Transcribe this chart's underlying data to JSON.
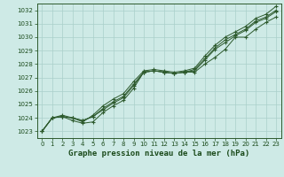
{
  "title": "Graphe pression niveau de la mer (hPa)",
  "background_color": "#ceeae6",
  "grid_color": "#aacfca",
  "line_color": "#2d5a2d",
  "text_color": "#1a4a1a",
  "ylim": [
    1022.5,
    1032.5
  ],
  "xlim": [
    -0.5,
    23.5
  ],
  "yticks": [
    1023,
    1024,
    1025,
    1026,
    1027,
    1028,
    1029,
    1030,
    1031,
    1032
  ],
  "xticks": [
    0,
    1,
    2,
    3,
    4,
    5,
    6,
    7,
    8,
    9,
    10,
    11,
    12,
    13,
    14,
    15,
    16,
    17,
    18,
    19,
    20,
    21,
    22,
    23
  ],
  "series": [
    [
      1023.0,
      1024.0,
      1024.1,
      1023.8,
      1023.6,
      1023.7,
      1024.4,
      1024.9,
      1025.3,
      1026.2,
      1027.4,
      1027.5,
      1027.4,
      1027.3,
      1027.4,
      1027.4,
      1028.0,
      1028.5,
      1029.1,
      1030.0,
      1030.0,
      1030.6,
      1031.1,
      1031.5
    ],
    [
      1023.0,
      1024.0,
      1024.1,
      1024.0,
      1023.8,
      1024.1,
      1024.6,
      1025.1,
      1025.5,
      1026.4,
      1027.4,
      1027.5,
      1027.4,
      1027.3,
      1027.4,
      1027.5,
      1028.3,
      1029.1,
      1029.6,
      1030.1,
      1030.5,
      1031.1,
      1031.4,
      1031.9
    ],
    [
      1023.0,
      1024.0,
      1024.1,
      1024.0,
      1023.8,
      1024.1,
      1024.7,
      1025.2,
      1025.6,
      1026.5,
      1027.4,
      1027.5,
      1027.4,
      1027.3,
      1027.4,
      1027.6,
      1028.4,
      1029.2,
      1029.8,
      1030.2,
      1030.6,
      1031.2,
      1031.5,
      1032.0
    ],
    [
      1023.0,
      1024.0,
      1024.2,
      1024.0,
      1023.7,
      1024.2,
      1024.9,
      1025.4,
      1025.8,
      1026.7,
      1027.5,
      1027.6,
      1027.5,
      1027.4,
      1027.5,
      1027.7,
      1028.6,
      1029.4,
      1030.0,
      1030.4,
      1030.8,
      1031.4,
      1031.7,
      1032.3
    ]
  ]
}
